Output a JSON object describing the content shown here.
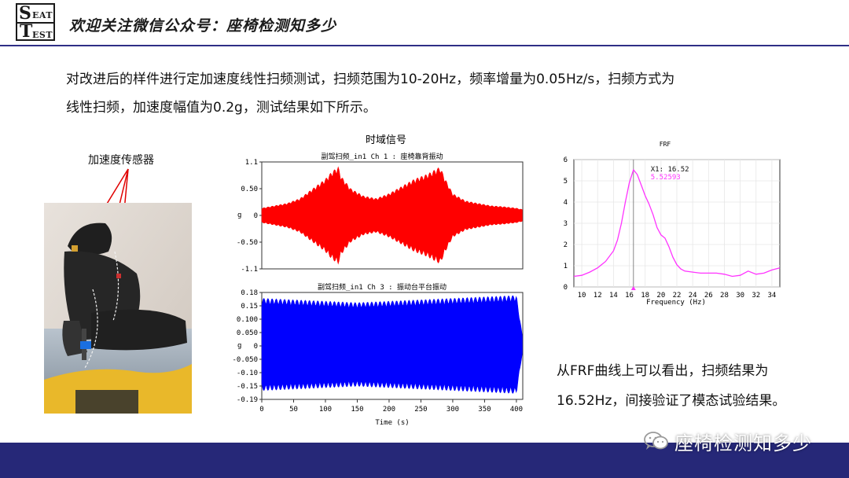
{
  "header": {
    "logo": {
      "line1_big": "S",
      "line1_small": "EAT",
      "line2_big": "T",
      "line2_small": "EST"
    },
    "title": "欢迎关注微信公众号：座椅检测知多少"
  },
  "intro": {
    "line1": "对改进后的样件进行定加速度线性扫频测试，扫频范围为10-20Hz，频率增量为0.05Hz/s，扫频方式为",
    "line2": "线性扫频，加速度幅值为0.2g，测试结果如下所示。"
  },
  "sensor_label": "加速度传感器",
  "time_chart": {
    "title": "时域信号",
    "panel1": {
      "title": "副驾扫频_in1  Ch 1 : 座椅靠背振动",
      "yticks": [
        "1.1",
        "0.50",
        "0",
        "-0.50",
        "-1.1"
      ],
      "ylabel": "g",
      "color": "#ff0000"
    },
    "panel2": {
      "title": "副驾扫频_in1  Ch 3 : 振动台平台振动",
      "yticks": [
        "0.18",
        "0.15",
        "0.100",
        "0.050",
        "0",
        "-0.050",
        "-0.10",
        "-0.15",
        "-0.19"
      ],
      "ylabel": "g",
      "color": "#0000ff"
    },
    "xticks": [
      "0",
      "50",
      "100",
      "150",
      "200",
      "250",
      "300",
      "350",
      "400"
    ],
    "xlabel": "Time (s)"
  },
  "frf_chart": {
    "title": "FRF",
    "yticks": [
      "6",
      "5",
      "4",
      "3",
      "2",
      "1",
      "0"
    ],
    "xticks": [
      "10",
      "12",
      "14",
      "16",
      "18",
      "20",
      "22",
      "24",
      "26",
      "28",
      "30",
      "32",
      "34"
    ],
    "xlabel": "Frequency (Hz)",
    "cursor_x_label": "X1: 16.52",
    "cursor_y_label": "5.52593",
    "line_color": "#ff33ff"
  },
  "chart_data": [
    {
      "type": "line",
      "title": "FRF",
      "xlabel": "Frequency (Hz)",
      "ylabel": "",
      "xlim": [
        9,
        35
      ],
      "ylim": [
        0,
        6
      ],
      "series": [
        {
          "x": [
            9,
            10,
            11,
            12,
            13,
            14,
            14.5,
            15,
            15.5,
            16,
            16.52,
            17,
            17.5,
            18,
            18.5,
            19,
            19.5,
            20,
            20.5,
            21,
            21.5,
            22,
            22.5,
            23,
            24,
            25,
            26,
            27,
            28,
            29,
            30,
            31,
            32,
            33,
            34,
            35
          ],
          "values": [
            0.5,
            0.55,
            0.7,
            0.9,
            1.2,
            1.7,
            2.2,
            3.0,
            4.0,
            4.9,
            5.52,
            5.3,
            4.8,
            4.3,
            3.9,
            3.4,
            2.8,
            2.45,
            2.3,
            1.9,
            1.4,
            1.05,
            0.85,
            0.75,
            0.7,
            0.65,
            0.65,
            0.65,
            0.6,
            0.5,
            0.55,
            0.75,
            0.6,
            0.65,
            0.8,
            0.9
          ]
        }
      ],
      "cursor": {
        "x": 16.52,
        "y": 5.52593
      }
    },
    {
      "type": "line",
      "title": "副驾扫频_in1  Ch 1 : 座椅靠背振动",
      "xlabel": "Time (s)",
      "ylabel": "g",
      "xlim": [
        0,
        410
      ],
      "ylim": [
        -1.1,
        1.1
      ],
      "series": [
        {
          "x": [
            0,
            20,
            40,
            60,
            80,
            100,
            110,
            120,
            125,
            140,
            160,
            180,
            200,
            220,
            240,
            260,
            280,
            290,
            300,
            320,
            340,
            360,
            380,
            400,
            410
          ],
          "envelope": [
            0.15,
            0.2,
            0.25,
            0.35,
            0.55,
            0.75,
            0.9,
            1.0,
            0.8,
            0.55,
            0.4,
            0.35,
            0.45,
            0.6,
            0.75,
            0.85,
            1.0,
            0.7,
            0.45,
            0.3,
            0.25,
            0.2,
            0.18,
            0.15,
            0.12
          ]
        }
      ]
    },
    {
      "type": "line",
      "title": "副驾扫频_in1  Ch 3 : 振动台平台振动",
      "xlabel": "Time (s)",
      "ylabel": "g",
      "xlim": [
        0,
        410
      ],
      "ylim": [
        -0.19,
        0.18
      ],
      "series": [
        {
          "x": [
            0,
            50,
            100,
            150,
            200,
            250,
            300,
            350,
            400,
            410
          ],
          "envelope": [
            0.16,
            0.155,
            0.15,
            0.145,
            0.15,
            0.155,
            0.16,
            0.165,
            0.17,
            0.02
          ]
        }
      ]
    }
  ],
  "result": {
    "line1": "从FRF曲线上可以看出，扫频结果为",
    "line2": "16.52Hz，间接验证了模态试验结果。"
  },
  "watermark": {
    "text": "座椅检测知多少",
    "icon": "wechat-icon"
  }
}
